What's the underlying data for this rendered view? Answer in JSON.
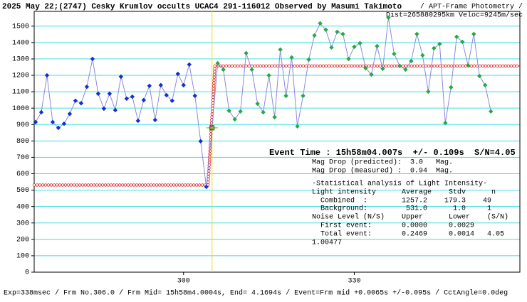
{
  "chart_data": {
    "type": "line",
    "title": "2025 May 22;(2747) Cesky Krumlov occults UCAC4 291-116012 Observed by Masumi Takimoto",
    "subtitle": "/ APT-Frame Photometry /",
    "subtitle2": "Dist=265880295km Veloc=9245m/sec",
    "footer": "Exp=338msec / Frm No.306.0 / Frm Mid= 15h58m4.0004s, End= 4.1694s / Event=Frm mid +0.0065s +/-0.095s / CctAngle=0.0deg",
    "event_time": "Event Time : 15h58m04.007s  +/- 0.109s  S/N=4.05",
    "annotations": [
      "Mag Drop (predicted):  3.0   Mag.",
      "Mag Drop (measured) :  0.94  Mag.",
      "-Statistical analysis of Light Intensity-",
      "Light intensity      Average    Stdv      n",
      "  Combined  :        1257.2    179.3    49",
      "  Background:         531.0      1.0     1",
      "Noise Level (N/S)    Upper      Lower    (S/N)",
      "  First event:       0.0000     0.0029",
      "  Total event:       0.2469     0.0014   4.05",
      "1.00477"
    ],
    "line_color": "#8a8ae0",
    "grid_color": "#44dddd",
    "event_x": 305.0,
    "event_color": "#f0e000",
    "model": {
      "color": "#e02020",
      "x": [
        273.75,
        304.3,
        305.5,
        359.1
      ],
      "values": [
        531,
        531,
        1257.2,
        1257.2
      ]
    },
    "series": [
      {
        "color": "#1030d0",
        "x": [
          274,
          275,
          276,
          277,
          278,
          279,
          280,
          281,
          282,
          283,
          284,
          285,
          286,
          287,
          288,
          289,
          290,
          291,
          292,
          293,
          294,
          295,
          296,
          297,
          298,
          299,
          300,
          301,
          302,
          303,
          304,
          305
        ],
        "values": [
          915,
          975,
          1200,
          915,
          880,
          905,
          965,
          1045,
          1030,
          1130,
          1300,
          1088,
          997,
          1088,
          988,
          1192,
          1058,
          1070,
          923,
          1049,
          1136,
          928,
          1140,
          1079,
          1045,
          1209,
          1140,
          1266,
          1075,
          798,
          520,
          880
        ]
      },
      {
        "color": "#22aa44",
        "x": [
          306,
          307,
          308,
          309,
          310,
          311,
          312,
          313,
          314,
          315,
          316,
          317,
          318,
          319,
          320,
          321,
          322,
          323,
          324,
          325,
          326,
          327,
          328,
          329,
          330,
          331,
          332,
          333,
          334,
          335,
          336,
          337,
          338,
          339,
          340,
          341,
          342,
          343,
          344,
          345,
          346,
          347,
          348,
          349,
          350,
          351,
          352,
          353,
          354
        ],
        "values": [
          1274,
          1235,
          984,
          932,
          980,
          1335,
          1235,
          1027,
          975,
          1200,
          945,
          1357,
          1075,
          1309,
          889,
          1075,
          1296,
          1443,
          1517,
          1478,
          1370,
          1465,
          1452,
          1300,
          1374,
          1396,
          1244,
          1205,
          1378,
          1240,
          1552,
          1331,
          1257,
          1235,
          1287,
          1452,
          1322,
          1101,
          1365,
          1391,
          910,
          1127,
          1435,
          1404,
          1261,
          1452,
          1196,
          1140,
          980
        ]
      }
    ],
    "xlim": [
      273.75,
      359.1
    ],
    "ylim": [
      0,
      1590
    ],
    "xticks": [
      300,
      330
    ],
    "yticks": [
      0,
      100,
      200,
      300,
      400,
      500,
      600,
      700,
      800,
      900,
      1000,
      1100,
      1200,
      1300,
      1400,
      1500
    ],
    "grid": true
  }
}
